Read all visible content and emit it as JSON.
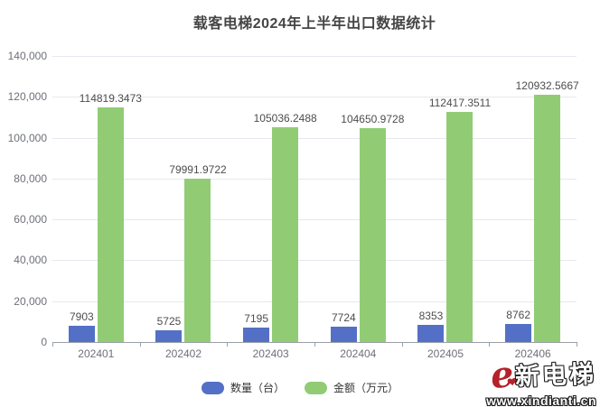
{
  "title": "载客电梯2024年上半年出口数据统计",
  "chart_data": {
    "type": "bar",
    "categories": [
      "202401",
      "202402",
      "202403",
      "202404",
      "202405",
      "202406"
    ],
    "series": [
      {
        "key": "quantity",
        "name": "数量（台）",
        "color": "#5470C6",
        "values": [
          7903,
          5725,
          7195,
          7724,
          8353,
          8762
        ]
      },
      {
        "key": "amount",
        "name": "金额（万元）",
        "color": "#91CC75",
        "values": [
          114819.3473,
          79991.9722,
          105036.2488,
          104650.9728,
          112417.3511,
          120932.5667
        ]
      }
    ],
    "title": "载客电梯2024年上半年出口数据统计",
    "xlabel": "",
    "ylabel": "",
    "ylim": [
      0,
      140000
    ],
    "y_tick_values": [
      0,
      20000,
      40000,
      60000,
      80000,
      100000,
      120000,
      140000
    ],
    "y_tick_labels": [
      "0",
      "20,000",
      "40,000",
      "60,000",
      "80,000",
      "100,000",
      "120,000",
      "140,000"
    ],
    "grid": true,
    "legend_position": "bottom",
    "bar_labels_shown": true
  },
  "legend": {
    "items": [
      {
        "label": "数量（台）",
        "color": "#5470C6"
      },
      {
        "label": "金额（万元）",
        "color": "#91CC75"
      }
    ]
  },
  "watermark": {
    "brand": "新电梯",
    "url": "www.xindianti.cn",
    "logo_glyph": "e",
    "heart_glyph": "❤",
    "accent_color": "#b5222a"
  }
}
